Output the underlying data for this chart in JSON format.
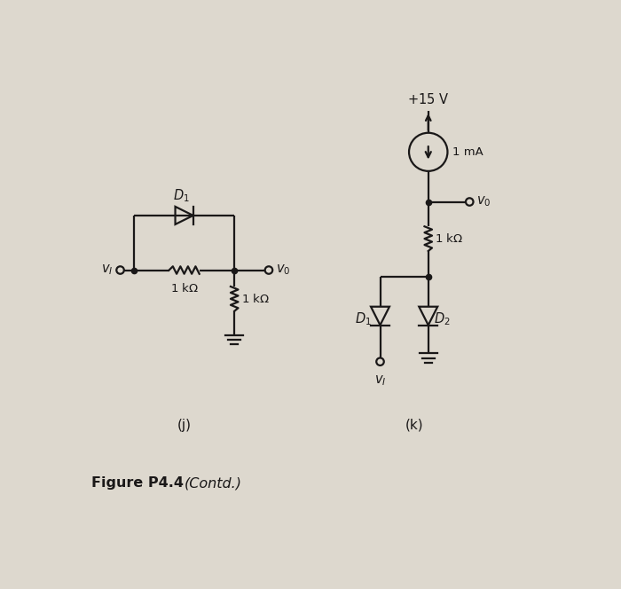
{
  "bg_color": "#ddd8ce",
  "line_color": "#1a1818",
  "text_color": "#1a1818",
  "fig_width": 7.0,
  "fig_height": 6.64,
  "label_j": "(j)",
  "label_k": "(k)",
  "caption_bold": "Figure P4.4",
  "caption_italic": "(Contd.)"
}
